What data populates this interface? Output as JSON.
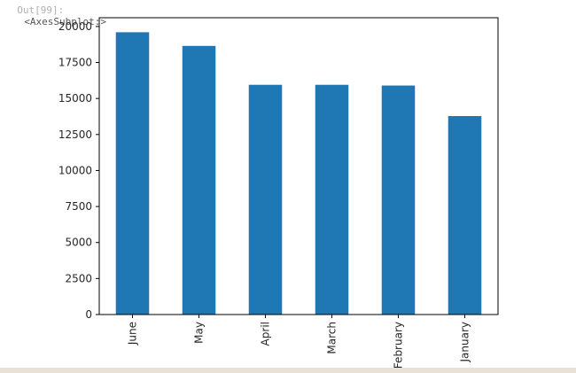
{
  "cell": {
    "prompt": "Out[99]:",
    "repr": "<AxesSubplot:>"
  },
  "colors": {
    "bar": "#1f77b4",
    "axis": "#000000",
    "tick_label": "#262626"
  },
  "chart_data": {
    "type": "bar",
    "categories": [
      "June",
      "May",
      "April",
      "March",
      "February",
      "January"
    ],
    "values": [
      19600,
      18650,
      15950,
      15950,
      15900,
      13780
    ],
    "title": "",
    "xlabel": "",
    "ylabel": "",
    "ylim": [
      0,
      20608
    ],
    "yticks": [
      0,
      2500,
      5000,
      7500,
      10000,
      12500,
      15000,
      17500,
      20000
    ],
    "grid": false,
    "legend": "none",
    "xtick_rotation": 90
  }
}
